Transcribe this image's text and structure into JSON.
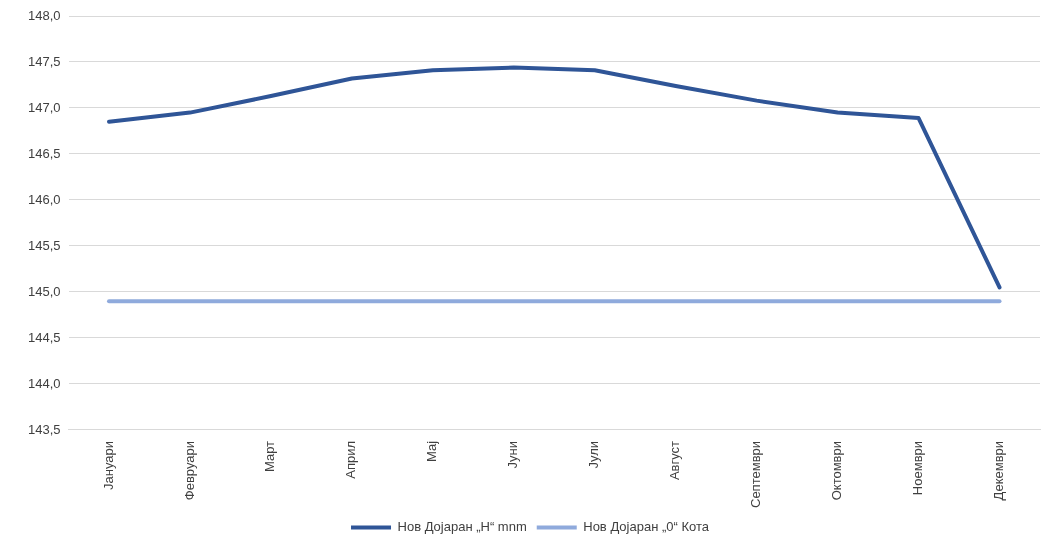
{
  "chart_data": {
    "type": "line",
    "categories": [
      "Јануари",
      "Февруари",
      "Март",
      "Април",
      "Мај",
      "Јуни",
      "Јули",
      "Август",
      "Септември",
      "Октомври",
      "Ноември",
      "Декември"
    ],
    "series": [
      {
        "name": "Нов Дојаран „H“ mnm",
        "color": "#2f5597",
        "values": [
          146.85,
          146.95,
          147.13,
          147.32,
          147.41,
          147.44,
          147.41,
          147.24,
          147.08,
          146.95,
          146.89,
          145.05
        ]
      },
      {
        "name": "Нов Дојаран „0“ Кота",
        "color": "#8faadc",
        "values": [
          144.9,
          144.9,
          144.9,
          144.9,
          144.9,
          144.9,
          144.9,
          144.9,
          144.9,
          144.9,
          144.9,
          144.9
        ]
      }
    ],
    "ylim": [
      143.5,
      148
    ],
    "yticks": [
      {
        "value": 143.5,
        "label": "143,5"
      },
      {
        "value": 144,
        "label": "144,0"
      },
      {
        "value": 144.5,
        "label": "144,5"
      },
      {
        "value": 145,
        "label": "145,0"
      },
      {
        "value": 145.5,
        "label": "145,5"
      },
      {
        "value": 146,
        "label": "146,0"
      },
      {
        "value": 146.5,
        "label": "146,5"
      },
      {
        "value": 147,
        "label": "147,0"
      },
      {
        "value": 147.5,
        "label": "147,5"
      },
      {
        "value": 148,
        "label": "148,0"
      }
    ],
    "grid": "y",
    "legend": "bottom",
    "marker": "none",
    "line_style": "solid"
  }
}
